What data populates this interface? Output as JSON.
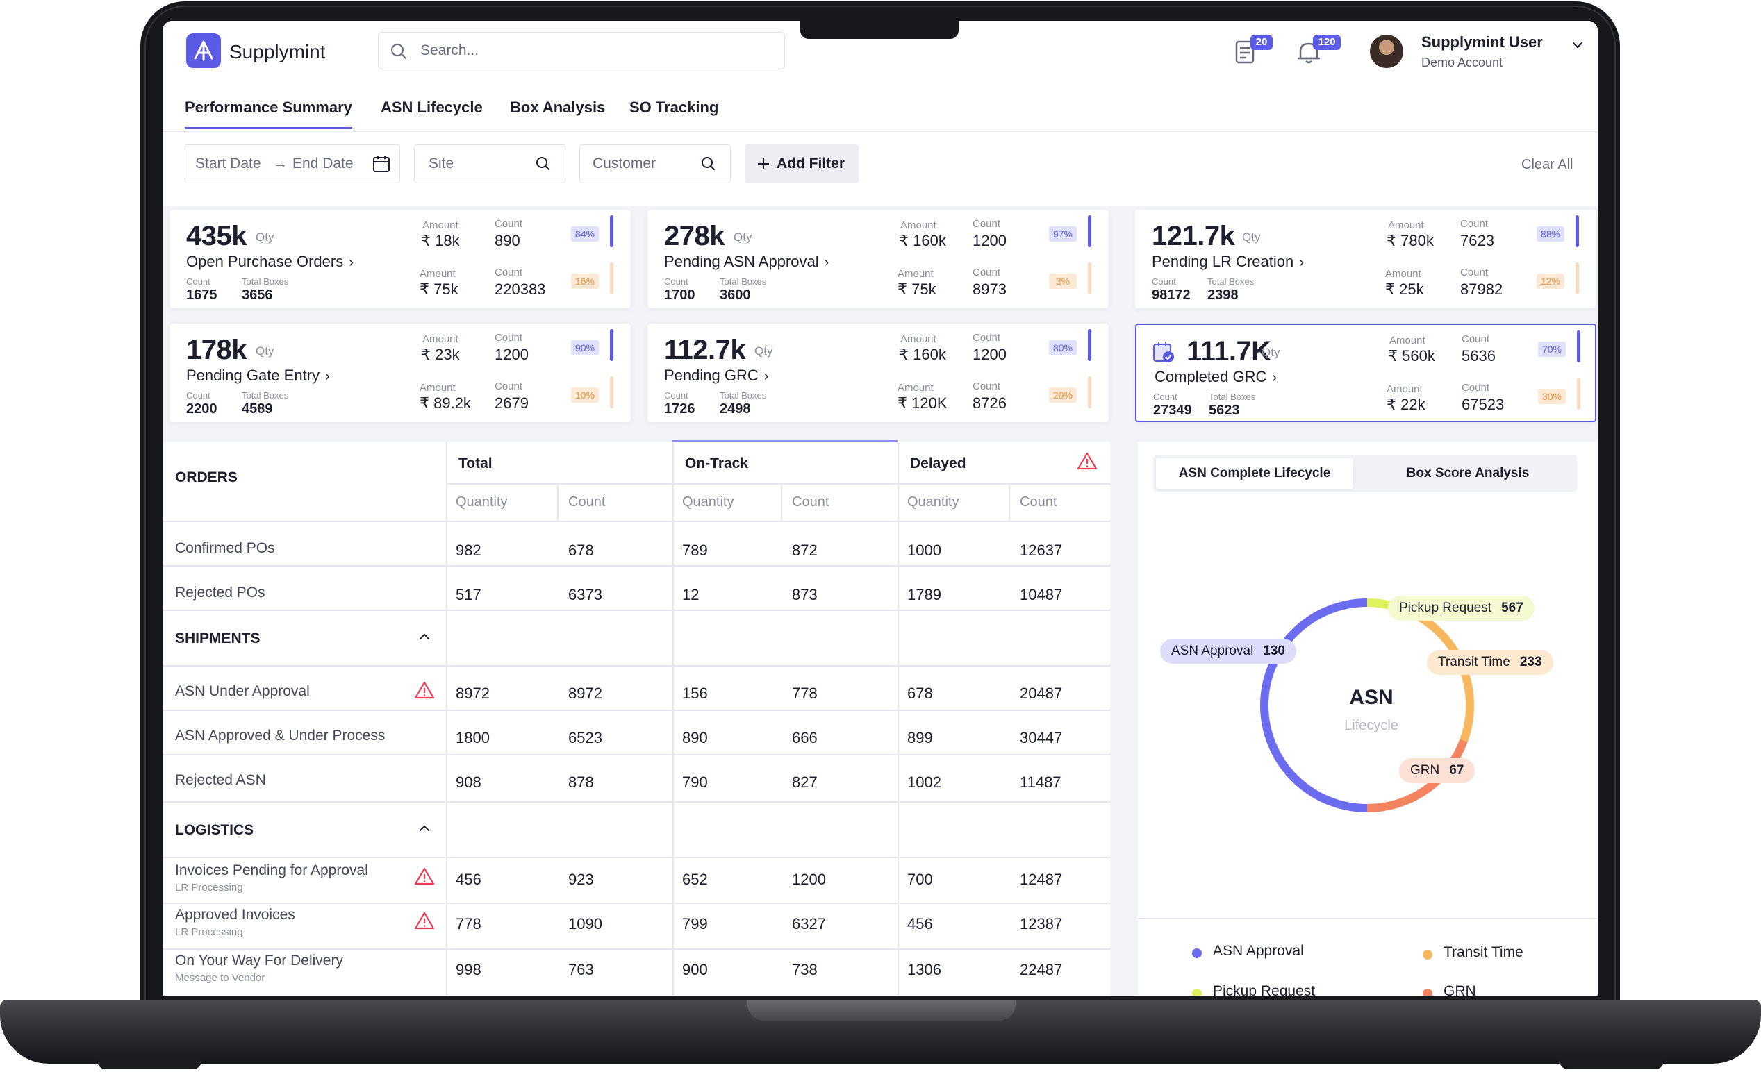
{
  "app": {
    "name": "Supplymint"
  },
  "search": {
    "placeholder": "Search..."
  },
  "header": {
    "notes_badge": "20",
    "bell_badge": "120",
    "user_name": "Supplymint User",
    "user_sub": "Demo Account"
  },
  "tabs": [
    "Performance Summary",
    "ASN Lifecycle",
    "Box Analysis",
    "SO Tracking"
  ],
  "filters": {
    "start_date": "Start Date",
    "arrow": "→",
    "end_date": "End Date",
    "site": "Site",
    "customer": "Customer",
    "add_filter": "Add Filter",
    "clear_all": "Clear All"
  },
  "kpi_common": {
    "qty": "Qty",
    "count": "Count",
    "total_boxes": "Total Boxes",
    "amount": "Amount"
  },
  "kpis": [
    {
      "big": "435k",
      "label": "Open Purchase Orders",
      "count": "1675",
      "boxes": "3656",
      "amt1": "₹ 18k",
      "cnt1": "890",
      "pct1": "84%",
      "amt2": "₹ 75k",
      "cnt2": "220383",
      "pct2": "16%"
    },
    {
      "big": "278k",
      "label": "Pending ASN Approval",
      "count": "1700",
      "boxes": "3600",
      "amt1": "₹ 160k",
      "cnt1": "1200",
      "pct1": "97%",
      "amt2": "₹ 75k",
      "cnt2": "8973",
      "pct2": "3%"
    },
    {
      "big": "121.7k",
      "label": "Pending LR Creation",
      "count": "98172",
      "boxes": "2398",
      "amt1": "₹ 780k",
      "cnt1": "7623",
      "pct1": "88%",
      "amt2": "₹ 25k",
      "cnt2": "87982",
      "pct2": "12%"
    },
    {
      "big": "178k",
      "label": "Pending Gate Entry",
      "count": "2200",
      "boxes": "4589",
      "amt1": "₹ 23k",
      "cnt1": "1200",
      "pct1": "90%",
      "amt2": "₹ 89.2k",
      "cnt2": "2679",
      "pct2": "10%"
    },
    {
      "big": "112.7k",
      "label": "Pending GRC",
      "count": "1726",
      "boxes": "2498",
      "amt1": "₹ 160k",
      "cnt1": "1200",
      "pct1": "80%",
      "amt2": "₹ 120K",
      "cnt2": "8726",
      "pct2": "20%"
    },
    {
      "big": "111.7K",
      "label": "Completed GRC",
      "count": "27349",
      "boxes": "5623",
      "amt1": "₹ 560k",
      "cnt1": "5636",
      "pct1": "70%",
      "amt2": "₹ 22k",
      "cnt2": "67523",
      "pct2": "30%"
    }
  ],
  "table": {
    "groups": [
      "Total",
      "On-Track",
      "Delayed"
    ],
    "sub": [
      "Quantity",
      "Count"
    ],
    "sections": [
      {
        "title": "ORDERS",
        "rows": [
          {
            "label": "Confirmed POs",
            "values": [
              "982",
              "678",
              "789",
              "872",
              "1000",
              "12637"
            ]
          },
          {
            "label": "Rejected POs",
            "values": [
              "517",
              "6373",
              "12",
              "873",
              "1789",
              "10487"
            ]
          }
        ]
      },
      {
        "title": "SHIPMENTS",
        "rows": [
          {
            "label": "ASN Under Approval",
            "values": [
              "8972",
              "8972",
              "156",
              "778",
              "678",
              "20487"
            ]
          },
          {
            "label": "ASN Approved & Under Process",
            "values": [
              "1800",
              "6523",
              "890",
              "666",
              "899",
              "30447"
            ]
          },
          {
            "label": "Rejected ASN",
            "values": [
              "908",
              "878",
              "790",
              "827",
              "1002",
              "11487"
            ]
          }
        ]
      },
      {
        "title": "LOGISTICS",
        "rows": [
          {
            "label": "Invoices Pending for Approval",
            "sub": "LR Processing",
            "values": [
              "456",
              "923",
              "652",
              "1200",
              "700",
              "12487"
            ]
          },
          {
            "label": "Approved Invoices",
            "sub": "LR Processing",
            "values": [
              "778",
              "1090",
              "799",
              "6327",
              "456",
              "12387"
            ]
          },
          {
            "label": "On Your Way For Delivery",
            "sub": "Message to Vendor",
            "values": [
              "998",
              "763",
              "900",
              "738",
              "1306",
              "22487"
            ]
          }
        ]
      }
    ]
  },
  "right": {
    "tabs": [
      "ASN Complete Lifecycle",
      "Box Score Analysis"
    ],
    "center_title": "ASN",
    "center_sub": "Lifecycle"
  },
  "chart_data": {
    "type": "pie",
    "title": "ASN",
    "subtitle": "Lifecycle",
    "categories": [
      "ASN Approval",
      "Pickup Request",
      "Transit Time",
      "GRN"
    ],
    "values": [
      130,
      567,
      233,
      67
    ],
    "legend": "bottom",
    "colors": {
      "ASN Approval": "#6c6cf0",
      "Pickup Request": "#dff25b",
      "Transit Time": "#f7b75e",
      "GRN": "#f4845f"
    }
  },
  "colors": {
    "accent": "#5b5be6",
    "danger": "#f03a53",
    "orange": "#f0913a"
  }
}
